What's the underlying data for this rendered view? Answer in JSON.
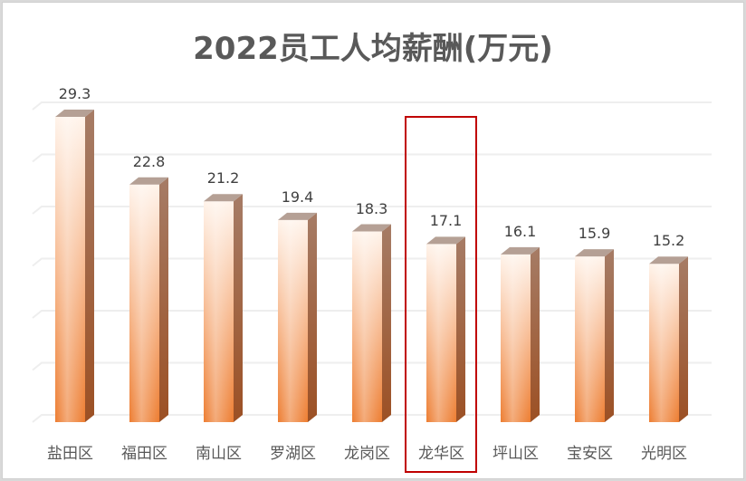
{
  "chart_data": {
    "type": "bar",
    "title": "2022员工人均薪酬(万元)",
    "xlabel": "",
    "ylabel": "",
    "categories": [
      "盐田区",
      "福田区",
      "南山区",
      "罗湖区",
      "龙岗区",
      "龙华区",
      "坪山区",
      "宝安区",
      "光明区"
    ],
    "values": [
      29.3,
      22.8,
      21.2,
      19.4,
      18.3,
      17.1,
      16.1,
      15.9,
      15.2
    ],
    "ylim": [
      0,
      30
    ],
    "grid": true,
    "legend": "none",
    "highlighted_category": "龙华区",
    "style": "3d-column"
  },
  "colors": {
    "bar_light": "#fde7d8",
    "bar_dark": "#ed7d31",
    "bar_side": "#a0522d",
    "bar_top": "#b39a8c",
    "highlight_border": "#c00000",
    "title": "#595959",
    "gridline": "#eeeeee"
  }
}
